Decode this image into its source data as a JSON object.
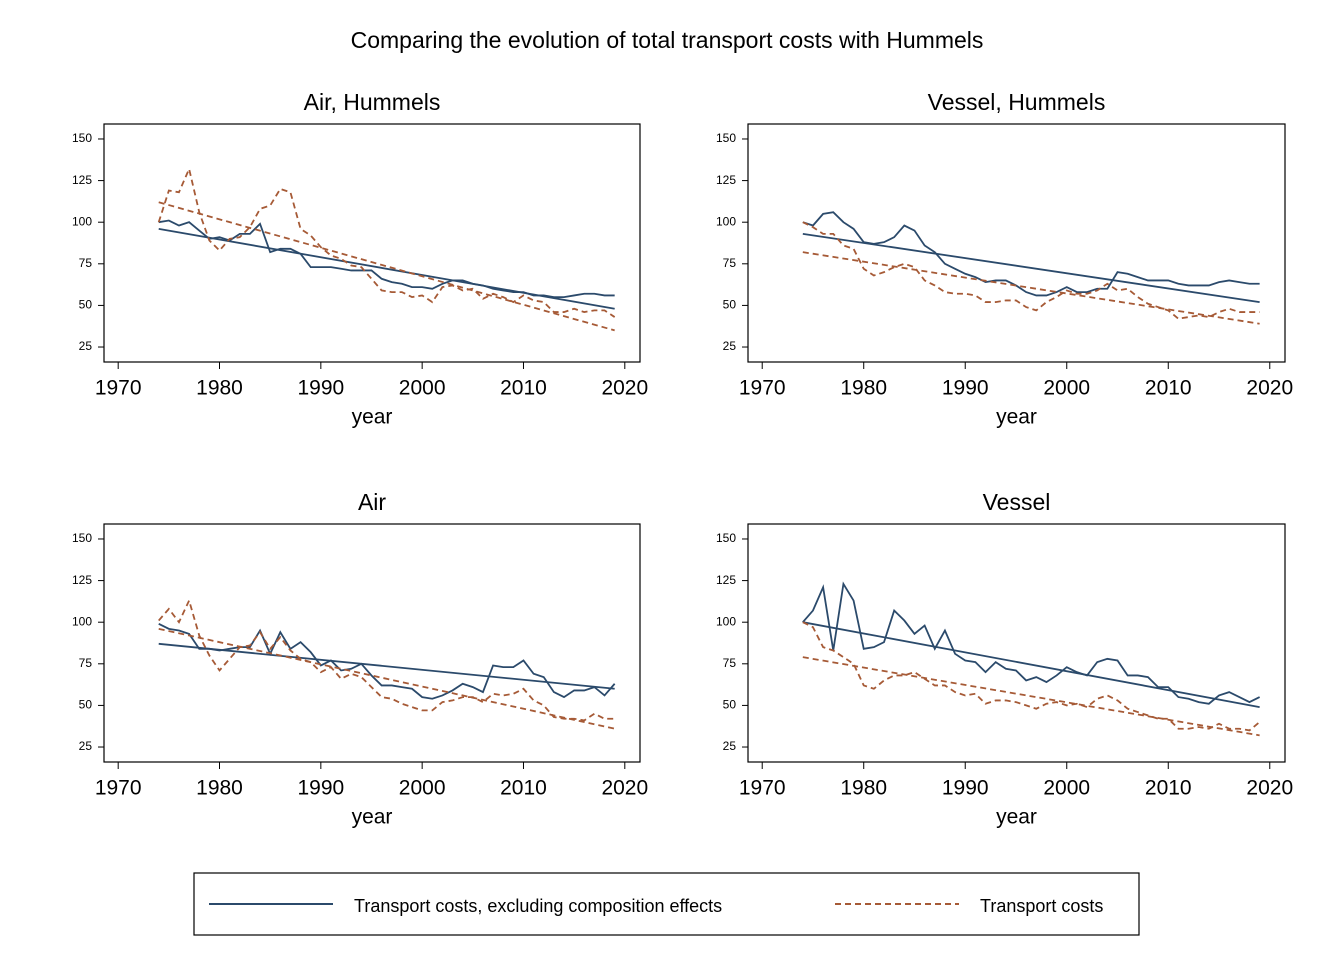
{
  "title": "Comparing the evolution of total transport costs with Hummels",
  "chart_data": [
    {
      "type": "line",
      "title": "Air, Hummels",
      "xlabel": "year",
      "x": [
        1974,
        1975,
        1976,
        1977,
        1978,
        1979,
        1980,
        1981,
        1982,
        1983,
        1984,
        1985,
        1986,
        1987,
        1988,
        1989,
        1990,
        1991,
        1992,
        1993,
        1994,
        1995,
        1996,
        1997,
        1998,
        1999,
        2000,
        2001,
        2002,
        2003,
        2004,
        2005,
        2006,
        2007,
        2008,
        2009,
        2010,
        2011,
        2012,
        2013,
        2014,
        2015,
        2016,
        2017,
        2018,
        2019
      ],
      "xlim": [
        1968.6,
        2021.5
      ],
      "xticks": [
        1970,
        1980,
        1990,
        2000,
        2010,
        2020
      ],
      "ylim": [
        16,
        159
      ],
      "yticks": [
        25,
        50,
        75,
        100,
        125,
        150
      ],
      "series": [
        {
          "name": "Transport costs, excluding composition effects",
          "color": "#2b4a6b",
          "dashed": false,
          "fit": [
            96,
            48
          ],
          "values": [
            100,
            101,
            98,
            100,
            95,
            90,
            91,
            89,
            93,
            93,
            99,
            82,
            84,
            84,
            81,
            73,
            73,
            73,
            72,
            71,
            71,
            71,
            66,
            64,
            63,
            61,
            61,
            60,
            63,
            65,
            65,
            63,
            62,
            60,
            59,
            58,
            58,
            56,
            56,
            55,
            55,
            56,
            57,
            57,
            56,
            56
          ]
        },
        {
          "name": "Transport costs",
          "color": "#a65a36",
          "dashed": true,
          "fit": [
            112,
            35
          ],
          "values": [
            100,
            119,
            118,
            132,
            106,
            89,
            83,
            90,
            91,
            97,
            108,
            110,
            120,
            118,
            96,
            92,
            85,
            80,
            78,
            74,
            73,
            66,
            59,
            58,
            58,
            55,
            56,
            52,
            61,
            62,
            59,
            60,
            54,
            57,
            55,
            52,
            56,
            53,
            52,
            46,
            46,
            48,
            46,
            47,
            47,
            43
          ]
        }
      ]
    },
    {
      "type": "line",
      "title": "Vessel, Hummels",
      "xlabel": "year",
      "x": [
        1974,
        1975,
        1976,
        1977,
        1978,
        1979,
        1980,
        1981,
        1982,
        1983,
        1984,
        1985,
        1986,
        1987,
        1988,
        1989,
        1990,
        1991,
        1992,
        1993,
        1994,
        1995,
        1996,
        1997,
        1998,
        1999,
        2000,
        2001,
        2002,
        2003,
        2004,
        2005,
        2006,
        2007,
        2008,
        2009,
        2010,
        2011,
        2012,
        2013,
        2014,
        2015,
        2016,
        2017,
        2018,
        2019
      ],
      "xlim": [
        1968.6,
        2021.5
      ],
      "xticks": [
        1970,
        1980,
        1990,
        2000,
        2010,
        2020
      ],
      "ylim": [
        16,
        159
      ],
      "yticks": [
        25,
        50,
        75,
        100,
        125,
        150
      ],
      "series": [
        {
          "name": "Transport costs, excluding composition effects",
          "color": "#2b4a6b",
          "dashed": false,
          "fit": [
            93,
            52
          ],
          "values": [
            100,
            98,
            105,
            106,
            100,
            96,
            88,
            87,
            88,
            91,
            98,
            95,
            86,
            82,
            75,
            72,
            69,
            67,
            64,
            65,
            65,
            62,
            58,
            56,
            56,
            58,
            61,
            58,
            58,
            60,
            60,
            70,
            69,
            67,
            65,
            65,
            65,
            63,
            62,
            62,
            62,
            64,
            65,
            64,
            63,
            63
          ]
        },
        {
          "name": "Transport costs",
          "color": "#a65a36",
          "dashed": true,
          "fit": [
            82,
            39
          ],
          "values": [
            100,
            97,
            93,
            93,
            86,
            84,
            72,
            68,
            70,
            73,
            75,
            73,
            65,
            62,
            58,
            57,
            57,
            56,
            52,
            52,
            53,
            53,
            49,
            47,
            52,
            55,
            59,
            57,
            57,
            59,
            63,
            59,
            60,
            55,
            51,
            49,
            47,
            42,
            43,
            44,
            43,
            46,
            48,
            46,
            46,
            46
          ]
        }
      ]
    },
    {
      "type": "line",
      "title": "Air",
      "xlabel": "year",
      "x": [
        1974,
        1975,
        1976,
        1977,
        1978,
        1979,
        1980,
        1981,
        1982,
        1983,
        1984,
        1985,
        1986,
        1987,
        1988,
        1989,
        1990,
        1991,
        1992,
        1993,
        1994,
        1995,
        1996,
        1997,
        1998,
        1999,
        2000,
        2001,
        2002,
        2003,
        2004,
        2005,
        2006,
        2007,
        2008,
        2009,
        2010,
        2011,
        2012,
        2013,
        2014,
        2015,
        2016,
        2017,
        2018,
        2019
      ],
      "xlim": [
        1968.6,
        2021.5
      ],
      "xticks": [
        1970,
        1980,
        1990,
        2000,
        2010,
        2020
      ],
      "ylim": [
        16,
        159
      ],
      "yticks": [
        25,
        50,
        75,
        100,
        125,
        150
      ],
      "series": [
        {
          "name": "Transport costs, excluding composition effects",
          "color": "#2b4a6b",
          "dashed": false,
          "fit": [
            87,
            60
          ],
          "values": [
            99,
            96,
            95,
            93,
            84,
            84,
            83,
            84,
            85,
            85,
            95,
            81,
            94,
            84,
            88,
            82,
            74,
            77,
            71,
            72,
            75,
            68,
            62,
            62,
            61,
            60,
            55,
            54,
            56,
            59,
            63,
            61,
            58,
            74,
            73,
            73,
            77,
            69,
            67,
            58,
            55,
            59,
            59,
            61,
            56,
            63
          ]
        },
        {
          "name": "Transport costs",
          "color": "#a65a36",
          "dashed": true,
          "fit": [
            96,
            36
          ],
          "values": [
            101,
            108,
            100,
            113,
            92,
            80,
            71,
            78,
            85,
            86,
            94,
            84,
            91,
            83,
            78,
            76,
            70,
            73,
            66,
            69,
            67,
            61,
            55,
            54,
            51,
            49,
            47,
            47,
            52,
            53,
            55,
            55,
            52,
            57,
            56,
            57,
            60,
            53,
            50,
            43,
            42,
            42,
            41,
            45,
            42,
            42
          ]
        }
      ]
    },
    {
      "type": "line",
      "title": "Vessel",
      "xlabel": "year",
      "x": [
        1974,
        1975,
        1976,
        1977,
        1978,
        1979,
        1980,
        1981,
        1982,
        1983,
        1984,
        1985,
        1986,
        1987,
        1988,
        1989,
        1990,
        1991,
        1992,
        1993,
        1994,
        1995,
        1996,
        1997,
        1998,
        1999,
        2000,
        2001,
        2002,
        2003,
        2004,
        2005,
        2006,
        2007,
        2008,
        2009,
        2010,
        2011,
        2012,
        2013,
        2014,
        2015,
        2016,
        2017,
        2018,
        2019
      ],
      "xlim": [
        1968.6,
        2021.5
      ],
      "xticks": [
        1970,
        1980,
        1990,
        2000,
        2010,
        2020
      ],
      "ylim": [
        16,
        159
      ],
      "yticks": [
        25,
        50,
        75,
        100,
        125,
        150
      ],
      "series": [
        {
          "name": "Transport costs, excluding composition effects",
          "color": "#2b4a6b",
          "dashed": false,
          "fit": [
            100,
            49
          ],
          "values": [
            100,
            107,
            121,
            83,
            123,
            113,
            84,
            85,
            88,
            107,
            101,
            93,
            98,
            84,
            95,
            81,
            77,
            76,
            70,
            76,
            72,
            71,
            65,
            67,
            64,
            68,
            73,
            70,
            68,
            76,
            78,
            77,
            68,
            68,
            67,
            61,
            61,
            55,
            54,
            52,
            51,
            56,
            58,
            55,
            52,
            55
          ]
        },
        {
          "name": "Transport costs",
          "color": "#a65a36",
          "dashed": true,
          "fit": [
            79,
            32
          ],
          "values": [
            100,
            97,
            85,
            83,
            79,
            75,
            62,
            60,
            65,
            68,
            68,
            70,
            66,
            62,
            62,
            58,
            56,
            57,
            51,
            53,
            53,
            52,
            50,
            48,
            51,
            52,
            50,
            51,
            49,
            54,
            56,
            53,
            48,
            46,
            44,
            42,
            42,
            36,
            36,
            37,
            36,
            39,
            36,
            36,
            35,
            40
          ]
        }
      ]
    }
  ]
}
